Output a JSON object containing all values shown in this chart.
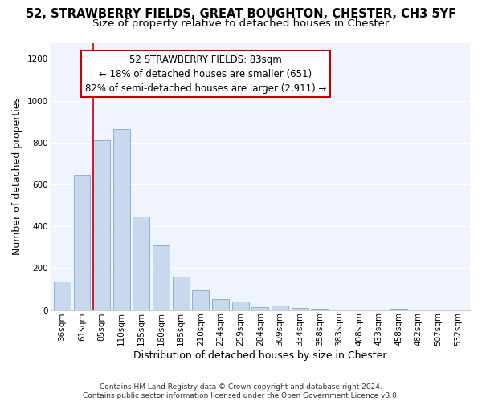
{
  "title": "52, STRAWBERRY FIELDS, GREAT BOUGHTON, CHESTER, CH3 5YF",
  "subtitle": "Size of property relative to detached houses in Chester",
  "xlabel": "Distribution of detached houses by size in Chester",
  "ylabel": "Number of detached properties",
  "bar_labels": [
    "36sqm",
    "61sqm",
    "85sqm",
    "110sqm",
    "135sqm",
    "160sqm",
    "185sqm",
    "210sqm",
    "234sqm",
    "259sqm",
    "284sqm",
    "309sqm",
    "334sqm",
    "358sqm",
    "383sqm",
    "408sqm",
    "433sqm",
    "458sqm",
    "482sqm",
    "507sqm",
    "532sqm"
  ],
  "bar_values": [
    135,
    645,
    810,
    865,
    445,
    310,
    158,
    95,
    52,
    42,
    15,
    20,
    10,
    5,
    2,
    0,
    0,
    5,
    0,
    0,
    3
  ],
  "bar_color": "#c8d8ee",
  "bar_edge_color": "#8ab0d0",
  "vline_x_index": 2,
  "vline_color": "#cc0000",
  "ylim": [
    0,
    1280
  ],
  "yticks": [
    0,
    200,
    400,
    600,
    800,
    1000,
    1200
  ],
  "ann_line1": "52 STRAWBERRY FIELDS: 83sqm",
  "ann_line2": "← 18% of detached houses are smaller (651)",
  "ann_line3": "82% of semi-detached houses are larger (2,911) →",
  "footer_text": "Contains HM Land Registry data © Crown copyright and database right 2024.\nContains public sector information licensed under the Open Government Licence v3.0.",
  "background_color": "#ffffff",
  "plot_bg_color": "#f0f4ff",
  "title_fontsize": 10.5,
  "subtitle_fontsize": 9.5,
  "axis_label_fontsize": 9,
  "tick_fontsize": 7.5,
  "ann_fontsize": 8.5,
  "footer_fontsize": 6.5
}
